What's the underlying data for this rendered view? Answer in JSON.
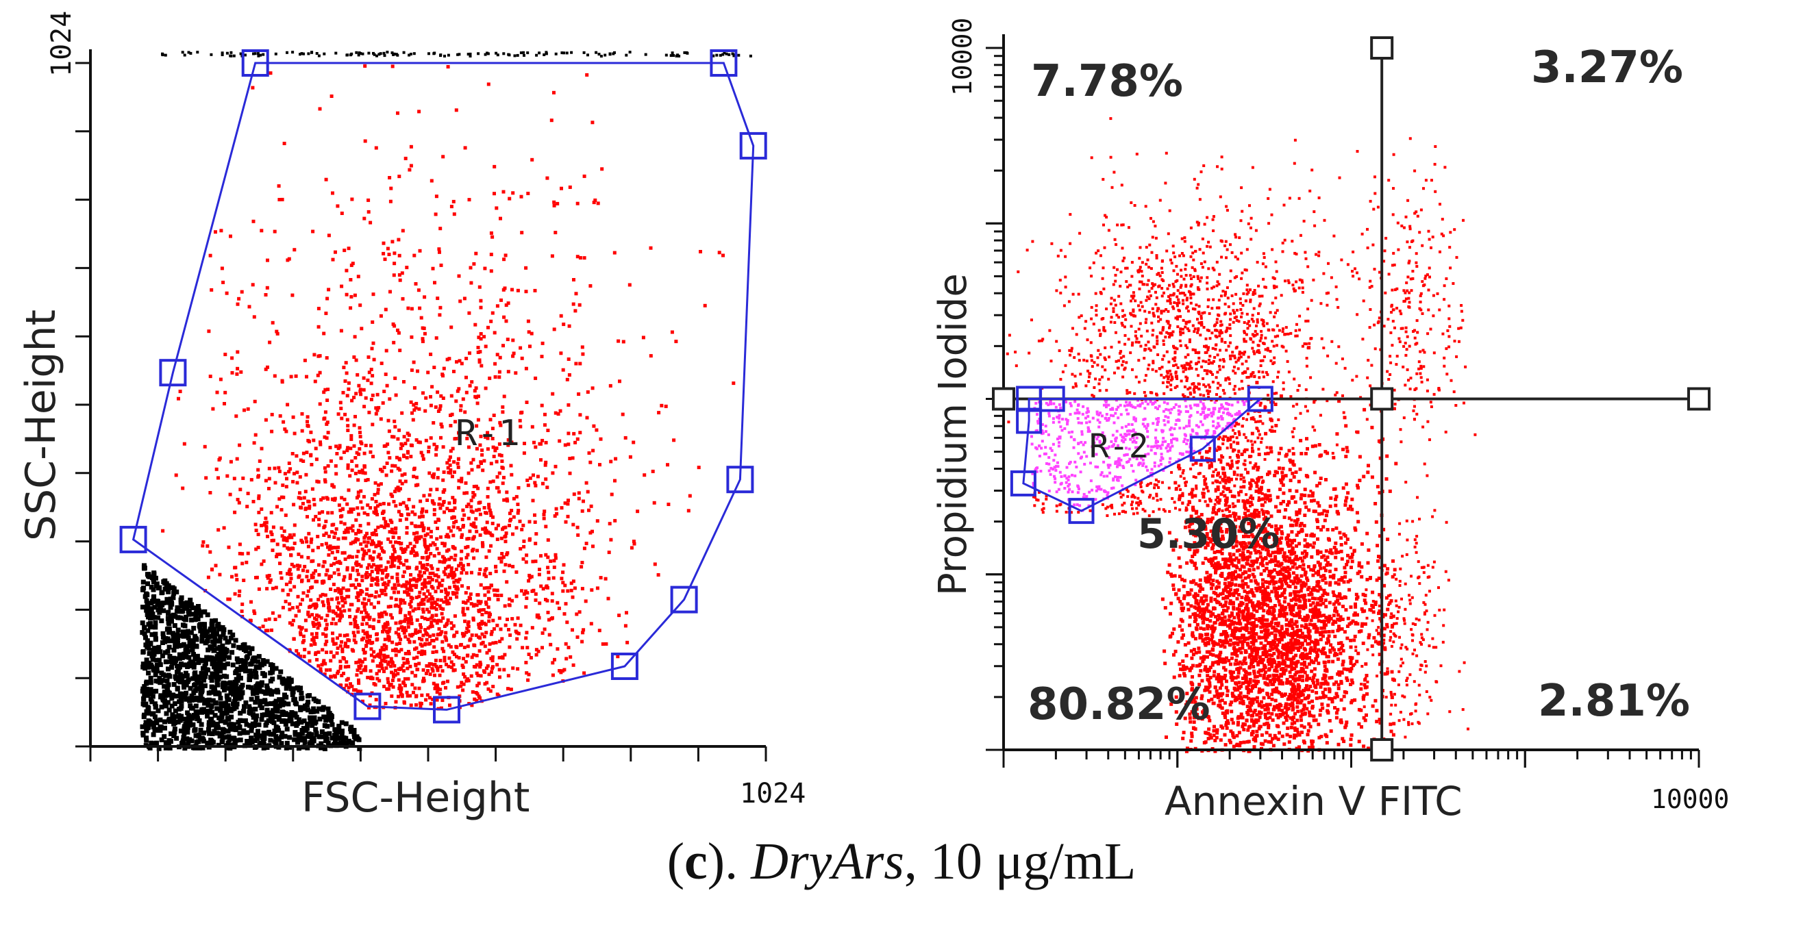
{
  "caption": {
    "open_paren": "(",
    "letter": "c",
    "close_dot": "). ",
    "sample": "DryArs",
    "dose": ", 10 μg/mL"
  },
  "colors": {
    "events": "#ff0000",
    "debris": "#000000",
    "gated": "#ff44ff",
    "gate_line": "#2a2ad8",
    "quadrant_line": "#222222"
  },
  "chart_data": [
    {
      "type": "scatter",
      "title": "",
      "xlabel": "FSC-Height",
      "ylabel": "SSC-Height",
      "xscale": "linear",
      "yscale": "linear",
      "xlim": [
        0,
        1024
      ],
      "ylim": [
        0,
        1024
      ],
      "x_tick_labels": [
        "1024"
      ],
      "y_tick_labels": [
        "1024"
      ],
      "grid": false,
      "series": [
        {
          "role": "events in gate",
          "color": "red"
        },
        {
          "role": "debris outside gate",
          "color": "black"
        }
      ],
      "gate": {
        "name": "R-1",
        "vertices": [
          [
            250,
            1024
          ],
          [
            960,
            1024
          ],
          [
            1005,
            900
          ],
          [
            985,
            400
          ],
          [
            900,
            220
          ],
          [
            810,
            120
          ],
          [
            540,
            55
          ],
          [
            420,
            60
          ],
          [
            65,
            310
          ],
          [
            125,
            560
          ]
        ]
      }
    },
    {
      "type": "scatter",
      "title": "",
      "xlabel": "Annexin V FITC",
      "ylabel": "Propidium Iodide",
      "xscale": "log",
      "yscale": "log",
      "xlim": [
        1,
        10000
      ],
      "ylim": [
        1,
        10000
      ],
      "x_tick_labels": [
        "10000"
      ],
      "y_tick_labels": [
        "10000"
      ],
      "grid": false,
      "quadrant": {
        "x": 150,
        "y": 100
      },
      "quadrants": [
        {
          "position": "top-left",
          "label": "7.78%"
        },
        {
          "position": "top-right",
          "label": "3.27%"
        },
        {
          "position": "bottom-left",
          "label": "80.82%"
        },
        {
          "position": "bottom-right",
          "label": "2.81%"
        }
      ],
      "gate": {
        "name": "R-2",
        "label": "5.30%",
        "vertices": [
          [
            1.4,
            100
          ],
          [
            1.9,
            100
          ],
          [
            30,
            100
          ],
          [
            14,
            52
          ],
          [
            2.8,
            23
          ],
          [
            1.3,
            33
          ],
          [
            1.4,
            75
          ]
        ]
      }
    }
  ]
}
